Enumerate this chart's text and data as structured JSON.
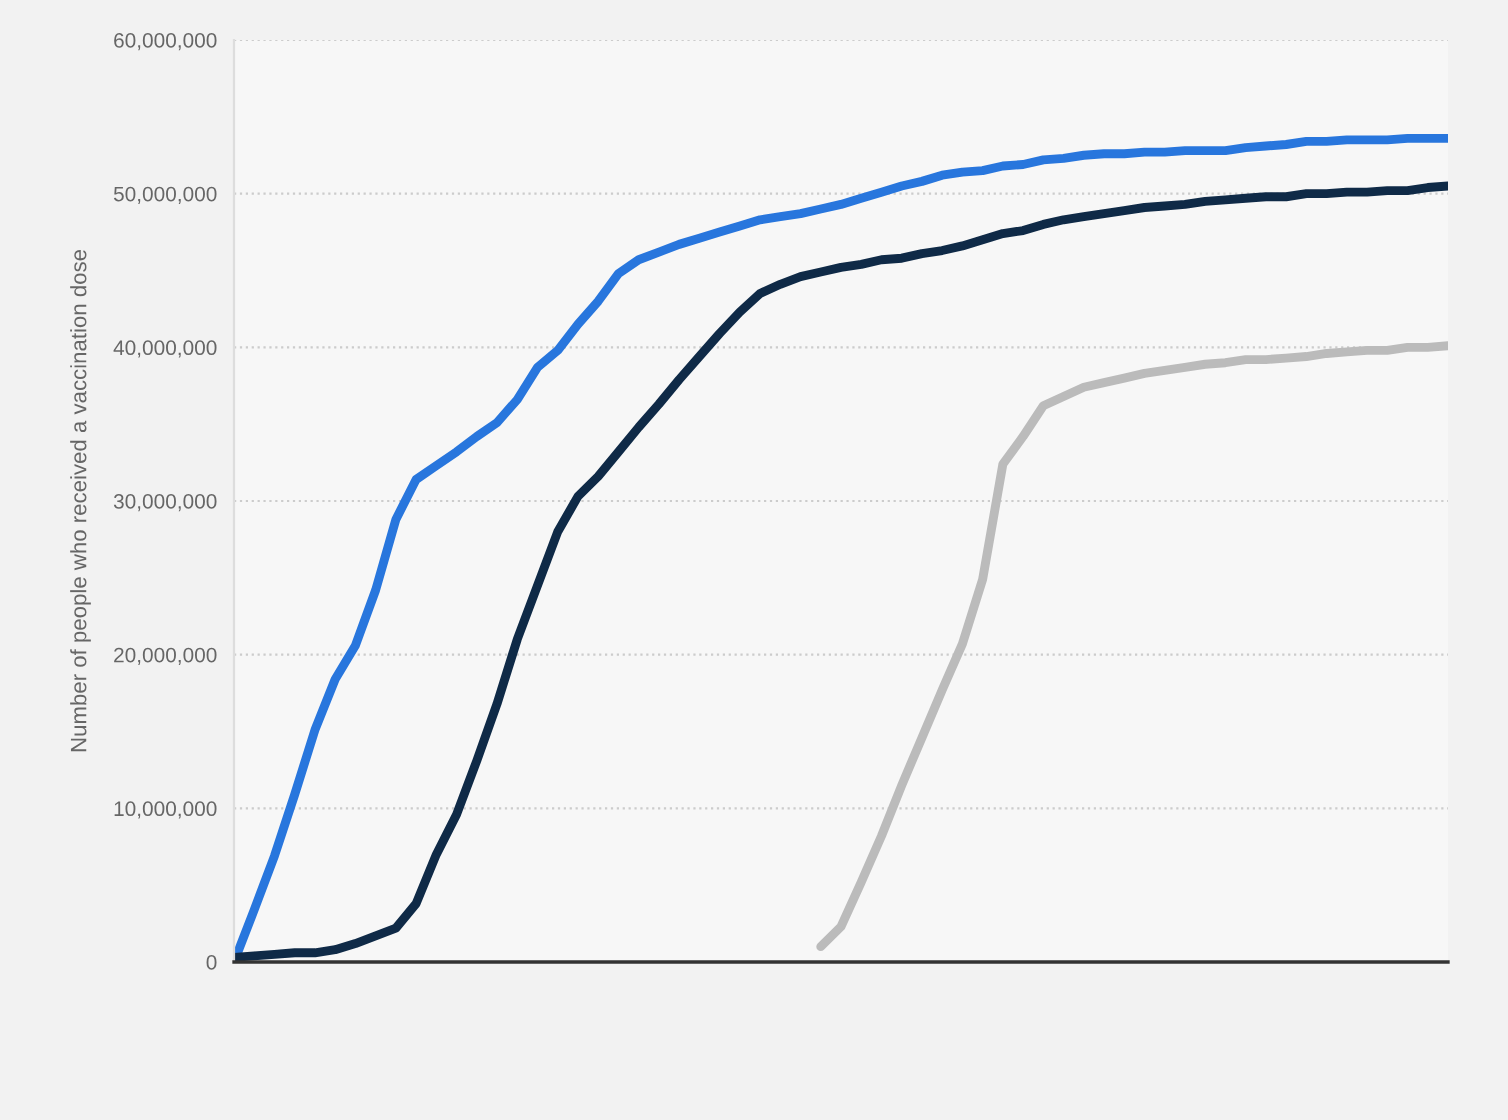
{
  "chart_data": {
    "type": "line",
    "ylabel": "Number of people who received a vaccination dose",
    "categories": [
      null,
      null,
      null,
      null,
      null,
      null,
      null,
      null,
      null,
      null,
      null,
      null,
      null,
      null,
      null,
      null,
      null,
      null,
      null,
      null,
      null,
      null,
      null,
      null,
      null,
      null,
      null,
      null,
      null,
      null,
      null,
      null,
      null,
      null,
      null,
      null,
      null,
      null,
      null,
      null,
      null,
      null,
      null,
      null,
      null,
      null,
      null,
      null,
      null,
      null,
      null,
      null,
      null,
      null,
      null,
      null,
      null,
      null,
      null,
      null,
      null
    ],
    "series": [
      {
        "color": "#2876dd",
        "values": [
          0,
          3400000,
          6900000,
          10900000,
          15100000,
          18400000,
          20600000,
          24200000,
          28800000,
          31400000,
          32300000,
          33200000,
          34200000,
          35100000,
          36600000,
          38700000,
          39800000,
          41500000,
          43000000,
          44800000,
          45700000,
          46200000,
          46700000,
          47100000,
          47500000,
          47900000,
          48300000,
          48500000,
          48700000,
          49000000,
          49300000,
          49700000,
          50100000,
          50500000,
          50800000,
          51200000,
          51400000,
          51500000,
          51800000,
          51900000,
          52200000,
          52300000,
          52500000,
          52600000,
          52600000,
          52700000,
          52700000,
          52800000,
          52800000,
          52800000,
          53000000,
          53100000,
          53200000,
          53400000,
          53400000,
          53500000,
          53500000,
          53500000,
          53600000,
          53600000,
          53600000
        ]
      },
      {
        "color": "#0f2a47",
        "values": [
          300000,
          400000,
          500000,
          600000,
          600000,
          800000,
          1200000,
          1700000,
          2200000,
          3800000,
          7000000,
          9600000,
          13100000,
          16800000,
          21000000,
          24500000,
          28000000,
          30300000,
          31600000,
          33200000,
          34800000,
          36300000,
          37900000,
          39400000,
          40900000,
          42300000,
          43500000,
          44100000,
          44600000,
          44900000,
          45200000,
          45400000,
          45700000,
          45800000,
          46100000,
          46300000,
          46600000,
          47000000,
          47400000,
          47600000,
          48000000,
          48300000,
          48500000,
          48700000,
          48900000,
          49100000,
          49200000,
          49300000,
          49500000,
          49600000,
          49700000,
          49800000,
          49800000,
          50000000,
          50000000,
          50100000,
          50100000,
          50200000,
          50200000,
          50400000,
          50500000
        ]
      },
      {
        "color": "#bbbbbb",
        "values": [
          null,
          null,
          null,
          null,
          null,
          null,
          null,
          null,
          null,
          null,
          null,
          null,
          null,
          null,
          null,
          null,
          null,
          null,
          null,
          null,
          null,
          null,
          null,
          null,
          null,
          null,
          null,
          null,
          null,
          1000000,
          2300000,
          5200000,
          8200000,
          11500000,
          14600000,
          17700000,
          20700000,
          24900000,
          32400000,
          34200000,
          36200000,
          36800000,
          37400000,
          37700000,
          38000000,
          38300000,
          38500000,
          38700000,
          38900000,
          39000000,
          39200000,
          39200000,
          39300000,
          39400000,
          39600000,
          39700000,
          39800000,
          39800000,
          40000000,
          40000000,
          40100000
        ]
      }
    ],
    "ylim": [
      0,
      60000000
    ],
    "yticks": [
      {
        "value": 0,
        "label": "0"
      },
      {
        "value": 10000000,
        "label": "10,000,000"
      },
      {
        "value": 20000000,
        "label": "20,000,000"
      },
      {
        "value": 30000000,
        "label": "30,000,000"
      },
      {
        "value": 40000000,
        "label": "40,000,000"
      },
      {
        "value": 50000000,
        "label": "50,000,000"
      },
      {
        "value": 60000000,
        "label": "60,000,000"
      }
    ],
    "grid": "y",
    "marker": "none",
    "line_style": "solid",
    "tick_labels": "y"
  }
}
